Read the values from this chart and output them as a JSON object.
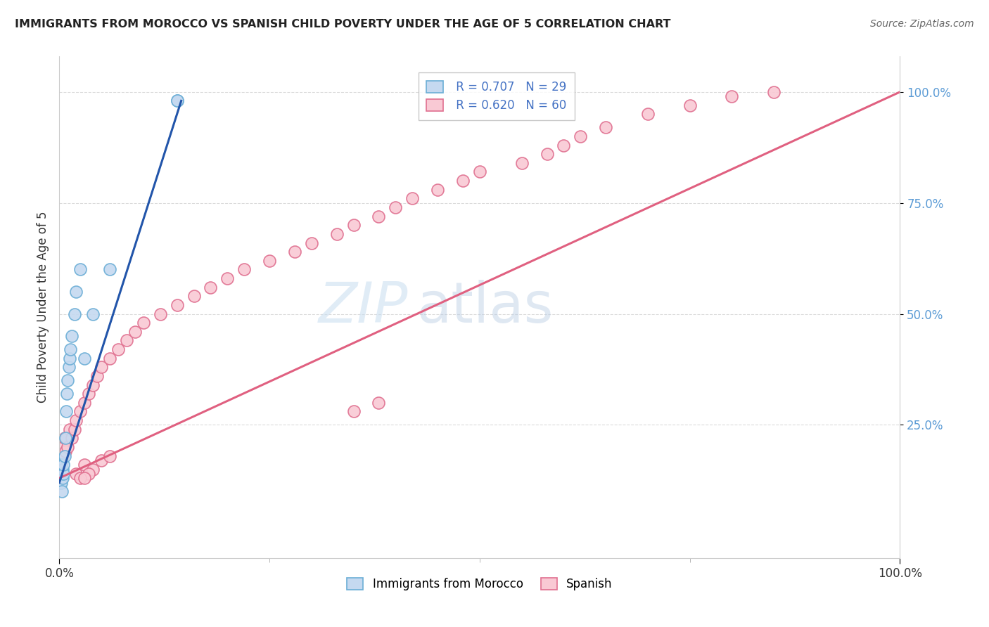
{
  "title": "IMMIGRANTS FROM MOROCCO VS SPANISH CHILD POVERTY UNDER THE AGE OF 5 CORRELATION CHART",
  "source": "Source: ZipAtlas.com",
  "ylabel": "Child Poverty Under the Age of 5",
  "legend_label1": "Immigrants from Morocco",
  "legend_label2": "Spanish",
  "r1": "R = 0.707",
  "n1": "N = 29",
  "r2": "R = 0.620",
  "n2": "N = 60",
  "morocco_color": "#c5d9f0",
  "morocco_edge": "#6baed6",
  "spanish_color": "#f9c9d4",
  "spanish_edge": "#e07090",
  "morocco_line_color": "#2255aa",
  "spanish_line_color": "#e06080",
  "background_color": "#ffffff",
  "grid_color": "#cccccc",
  "morocco_x": [
    0.001,
    0.001,
    0.001,
    0.002,
    0.002,
    0.002,
    0.003,
    0.003,
    0.004,
    0.004,
    0.005,
    0.005,
    0.006,
    0.007,
    0.008,
    0.009,
    0.01,
    0.011,
    0.012,
    0.013,
    0.015,
    0.018,
    0.02,
    0.025,
    0.03,
    0.04,
    0.06,
    0.14,
    0.14
  ],
  "morocco_y": [
    0.12,
    0.14,
    0.16,
    0.12,
    0.14,
    0.16,
    0.1,
    0.14,
    0.13,
    0.15,
    0.14,
    0.16,
    0.18,
    0.22,
    0.28,
    0.32,
    0.35,
    0.38,
    0.4,
    0.42,
    0.45,
    0.5,
    0.55,
    0.6,
    0.4,
    0.5,
    0.6,
    0.98,
    0.98
  ],
  "spanish_x": [
    0.001,
    0.002,
    0.003,
    0.004,
    0.005,
    0.006,
    0.007,
    0.008,
    0.01,
    0.012,
    0.015,
    0.018,
    0.02,
    0.025,
    0.03,
    0.035,
    0.04,
    0.045,
    0.05,
    0.06,
    0.07,
    0.08,
    0.09,
    0.1,
    0.12,
    0.14,
    0.16,
    0.18,
    0.2,
    0.22,
    0.25,
    0.28,
    0.3,
    0.33,
    0.35,
    0.38,
    0.4,
    0.42,
    0.45,
    0.48,
    0.5,
    0.55,
    0.58,
    0.6,
    0.62,
    0.65,
    0.7,
    0.75,
    0.8,
    0.85,
    0.02,
    0.03,
    0.04,
    0.05,
    0.06,
    0.035,
    0.025,
    0.03,
    0.35,
    0.38
  ],
  "spanish_y": [
    0.14,
    0.16,
    0.15,
    0.18,
    0.2,
    0.22,
    0.19,
    0.22,
    0.2,
    0.24,
    0.22,
    0.24,
    0.26,
    0.28,
    0.3,
    0.32,
    0.34,
    0.36,
    0.38,
    0.4,
    0.42,
    0.44,
    0.46,
    0.48,
    0.5,
    0.52,
    0.54,
    0.56,
    0.58,
    0.6,
    0.62,
    0.64,
    0.66,
    0.68,
    0.7,
    0.72,
    0.74,
    0.76,
    0.78,
    0.8,
    0.82,
    0.84,
    0.86,
    0.88,
    0.9,
    0.92,
    0.95,
    0.97,
    0.99,
    1.0,
    0.14,
    0.16,
    0.15,
    0.17,
    0.18,
    0.14,
    0.13,
    0.13,
    0.28,
    0.3
  ],
  "xlim": [
    0.0,
    1.0
  ],
  "ylim": [
    -0.05,
    1.08
  ],
  "yticks": [
    0.25,
    0.5,
    0.75,
    1.0
  ],
  "ytick_labels": [
    "25.0%",
    "50.0%",
    "75.0%",
    "100.0%"
  ],
  "xtick_labels": [
    "0.0%",
    "100.0%"
  ],
  "watermark_zip": "ZIP",
  "watermark_atlas": "atlas"
}
